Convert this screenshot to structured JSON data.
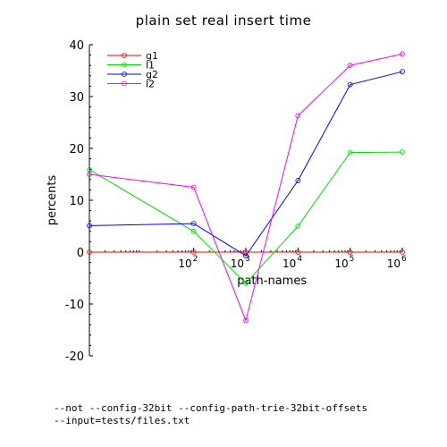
{
  "chart_data": {
    "type": "line",
    "title": "plain set real insert time",
    "xlabel": "path-names",
    "ylabel": "percents",
    "x_scale": "log",
    "x": [
      1,
      100,
      1000,
      10000,
      100000,
      1000000
    ],
    "xlim": [
      1,
      1000000
    ],
    "xticks": [
      {
        "value": 100,
        "base": "10",
        "exp": "2"
      },
      {
        "value": 1000,
        "base": "10",
        "exp": "3"
      },
      {
        "value": 10000,
        "base": "10",
        "exp": "4"
      },
      {
        "value": 100000,
        "base": "10",
        "exp": "5"
      },
      {
        "value": 1000000,
        "base": "10",
        "exp": "6"
      }
    ],
    "ylim": [
      -20,
      40
    ],
    "yticks": [
      -20,
      -10,
      0,
      10,
      20,
      30,
      40
    ],
    "grid": false,
    "legend_position": "top-left",
    "series": [
      {
        "name": "g1",
        "color": "#ff0000",
        "values": [
          0,
          0,
          0,
          0,
          0,
          0
        ]
      },
      {
        "name": "l1",
        "color": "#00dd00",
        "values": [
          15.9,
          4.0,
          -6.0,
          5.0,
          19.2,
          19.3
        ]
      },
      {
        "name": "g2",
        "color": "#0000ff",
        "values": [
          5.1,
          5.5,
          -0.7,
          13.8,
          32.3,
          34.8
        ]
      },
      {
        "name": "l2",
        "color": "#ff00ff",
        "values": [
          15.0,
          12.5,
          -13.2,
          26.3,
          36.0,
          38.2
        ]
      }
    ]
  },
  "footer": {
    "line1": "--not --config-32bit --config-path-trie-32bit-offsets",
    "line2": "--input=tests/files.txt"
  }
}
